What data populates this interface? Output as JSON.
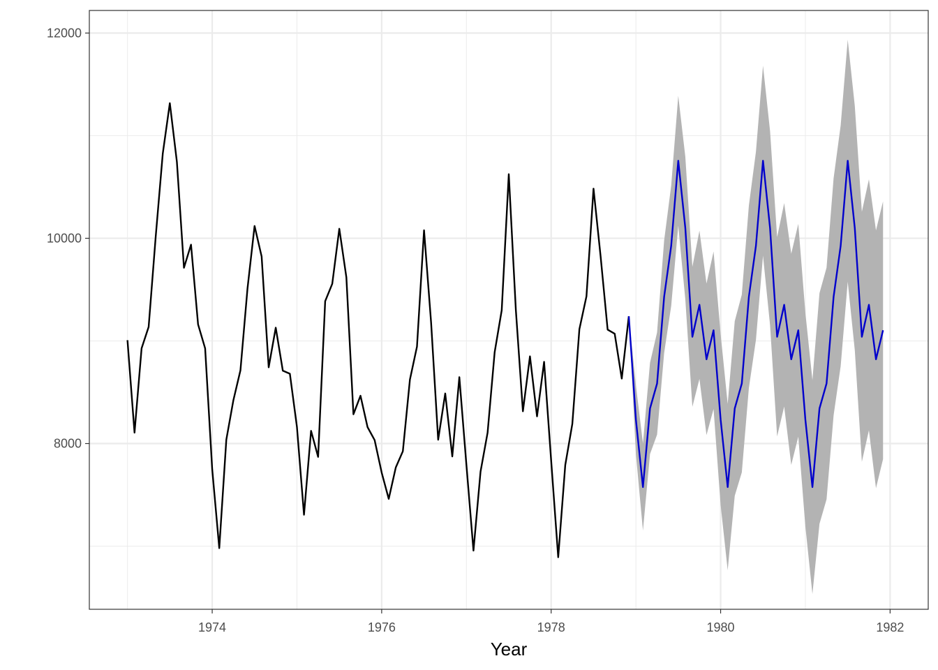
{
  "chart_data": {
    "type": "line",
    "xlabel": "Year",
    "ylabel": "",
    "xlim": [
      1972.55,
      1982.45
    ],
    "ylim": [
      6385,
      12220
    ],
    "x_ticks": [
      1974,
      1976,
      1978,
      1980,
      1982
    ],
    "x_tick_labels": [
      "1974",
      "1976",
      "1978",
      "1980",
      "1982"
    ],
    "y_ticks": [
      8000,
      10000,
      12000
    ],
    "y_tick_labels": [
      "8000",
      "10000",
      "12000"
    ],
    "x_minor_grid": [
      1973,
      1975,
      1977,
      1979,
      1981
    ],
    "y_minor_grid": [
      7000,
      9000,
      11000
    ],
    "grid": true,
    "legend": "none",
    "colors": {
      "observed": "#000000",
      "forecast": "#0000cc",
      "interval": "#b3b3b3",
      "grid": "#ebebeb",
      "border": "#333333"
    },
    "series": [
      {
        "kind": "observed",
        "x_start": 1973.0,
        "step": 0.083333,
        "values": [
          9007,
          8106,
          8928,
          9137,
          10017,
          10826,
          11317,
          10744,
          9713,
          9938,
          9161,
          8927,
          7750,
          6981,
          8038,
          8422,
          8714,
          9512,
          10120,
          9823,
          8743,
          9129,
          8710,
          8680,
          8162,
          7306,
          8124,
          7870,
          9387,
          9556,
          10093,
          9620,
          8285,
          8466,
          8160,
          8034,
          7717,
          7461,
          7767,
          7925,
          8623,
          8945,
          10078,
          9179,
          8037,
          8488,
          7874,
          8647,
          7792,
          6957,
          7726,
          8106,
          8890,
          9299,
          10625,
          9302,
          8314,
          8850,
          8265,
          8796,
          7836,
          6892,
          7791,
          8192,
          9115,
          9434,
          10484,
          9827,
          9110,
          9070,
          8633,
          9240
        ]
      },
      {
        "kind": "forecast",
        "x_start": 1978.9167,
        "step": 0.083333,
        "values": [
          9240,
          8234,
          7576,
          8342,
          8585,
          9430,
          9927,
          10756,
          10100,
          9040,
          9352,
          8821,
          9104,
          8234,
          7576,
          8342,
          8585,
          9430,
          9927,
          10756,
          10100,
          9040,
          9352,
          8821,
          9104,
          8234,
          7576,
          8342,
          8585,
          9430,
          9927,
          10756,
          10100,
          9040,
          9352,
          8821,
          9104
        ]
      }
    ],
    "interval": {
      "x_start": 1978.9167,
      "step": 0.083333,
      "lower": [
        9240,
        7898,
        7152,
        7897,
        8087,
        8882,
        9341,
        10123,
        9405,
        8358,
        8630,
        8083,
        8337,
        7401,
        6766,
        7491,
        7719,
        8541,
        9010,
        9830,
        9155,
        8069,
        8361,
        7792,
        8067,
        7193,
        6534,
        7218,
        7456,
        8275,
        8754,
        9577,
        8910,
        7822,
        8129,
        7565,
        7848
      ],
      "upper": [
        9240,
        8570,
        8000,
        8787,
        9083,
        9978,
        10513,
        11389,
        10795,
        9722,
        10074,
        9559,
        9871,
        9067,
        8386,
        9193,
        9451,
        10319,
        10844,
        11682,
        11045,
        10011,
        10343,
        9850,
        10141,
        9275,
        8618,
        9466,
        9714,
        10585,
        11100,
        11935,
        11290,
        10258,
        10575,
        10077,
        10360
      ]
    }
  }
}
